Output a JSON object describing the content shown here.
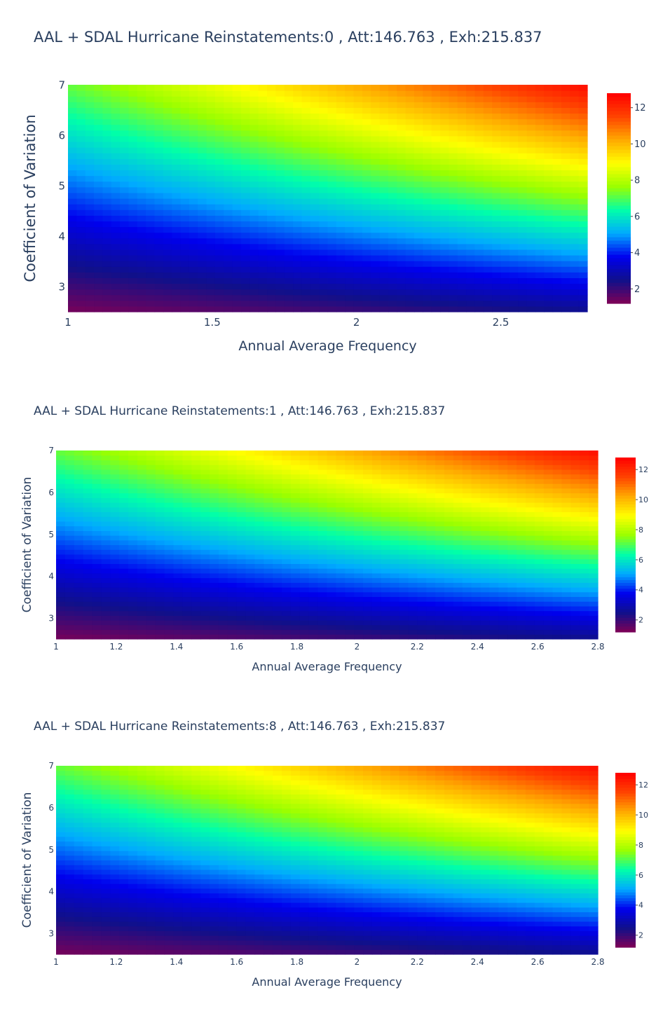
{
  "chart_data": [
    {
      "type": "heatmap",
      "title": "AAL + SDAL Hurricane  Reinstatements:0  , Att:146.763  , Exh:215.837",
      "xlabel": "Annual Average Frequency",
      "ylabel": "Coefficient of Variation",
      "xlim": [
        1,
        2.8
      ],
      "ylim": [
        2.5,
        7
      ],
      "x_ticks": [
        "1",
        "1.5",
        "2",
        "2.5"
      ],
      "x_tick_values": [
        1,
        1.5,
        2,
        2.5
      ],
      "y_ticks": [
        "3",
        "4",
        "5",
        "6",
        "7"
      ],
      "y_tick_values": [
        3,
        4,
        5,
        6,
        7
      ],
      "colorbar": {
        "range": [
          1.2,
          12.8
        ],
        "ticks": [
          "2",
          "4",
          "6",
          "8",
          "10",
          "12"
        ],
        "tick_values": [
          2,
          4,
          6,
          8,
          10,
          12
        ]
      },
      "colorscale": "rainbow",
      "z_corners": {
        "x1_y2.5": 1.3,
        "x1_y7": 7.2,
        "x2.8_y2.5": 2.5,
        "x2.8_y7": 12.6
      }
    },
    {
      "type": "heatmap",
      "title": "AAL + SDAL Hurricane  Reinstatements:1  , Att:146.763  , Exh:215.837",
      "xlabel": "Annual Average Frequency",
      "ylabel": "Coefficient of Variation",
      "xlim": [
        1,
        2.8
      ],
      "ylim": [
        2.5,
        7
      ],
      "x_ticks": [
        "1",
        "1.2",
        "1.4",
        "1.6",
        "1.8",
        "2",
        "2.2",
        "2.4",
        "2.6",
        "2.8"
      ],
      "x_tick_values": [
        1,
        1.2,
        1.4,
        1.6,
        1.8,
        2,
        2.2,
        2.4,
        2.6,
        2.8
      ],
      "y_ticks": [
        "3",
        "4",
        "5",
        "6",
        "7"
      ],
      "y_tick_values": [
        3,
        4,
        5,
        6,
        7
      ],
      "colorbar": {
        "range": [
          1.2,
          12.8
        ],
        "ticks": [
          "2",
          "4",
          "6",
          "8",
          "10",
          "12"
        ],
        "tick_values": [
          2,
          4,
          6,
          8,
          10,
          12
        ]
      },
      "colorscale": "rainbow",
      "z_corners": {
        "x1_y2.5": 1.3,
        "x1_y7": 7.2,
        "x2.8_y2.5": 2.5,
        "x2.8_y7": 12.6
      }
    },
    {
      "type": "heatmap",
      "title": "AAL + SDAL Hurricane  Reinstatements:8  , Att:146.763  , Exh:215.837",
      "xlabel": "Annual Average Frequency",
      "ylabel": "Coefficient of Variation",
      "xlim": [
        1,
        2.8
      ],
      "ylim": [
        2.5,
        7
      ],
      "x_ticks": [
        "1",
        "1.2",
        "1.4",
        "1.6",
        "1.8",
        "2",
        "2.2",
        "2.4",
        "2.6",
        "2.8"
      ],
      "x_tick_values": [
        1,
        1.2,
        1.4,
        1.6,
        1.8,
        2,
        2.2,
        2.4,
        2.6,
        2.8
      ],
      "y_ticks": [
        "3",
        "4",
        "5",
        "6",
        "7"
      ],
      "y_tick_values": [
        3,
        4,
        5,
        6,
        7
      ],
      "colorbar": {
        "range": [
          1.2,
          12.8
        ],
        "ticks": [
          "2",
          "4",
          "6",
          "8",
          "10",
          "12"
        ],
        "tick_values": [
          2,
          4,
          6,
          8,
          10,
          12
        ]
      },
      "colorscale": "rainbow",
      "z_corners": {
        "x1_y2.5": 1.3,
        "x1_y7": 7.2,
        "x2.8_y2.5": 2.5,
        "x2.8_y7": 12.6
      }
    }
  ],
  "colorscale_stops": [
    "#800055",
    "#10108a",
    "#0000ee",
    "#00aaff",
    "#00ffaa",
    "#99ff00",
    "#ffff00",
    "#ffaa00",
    "#ff4400",
    "#ff0000"
  ]
}
